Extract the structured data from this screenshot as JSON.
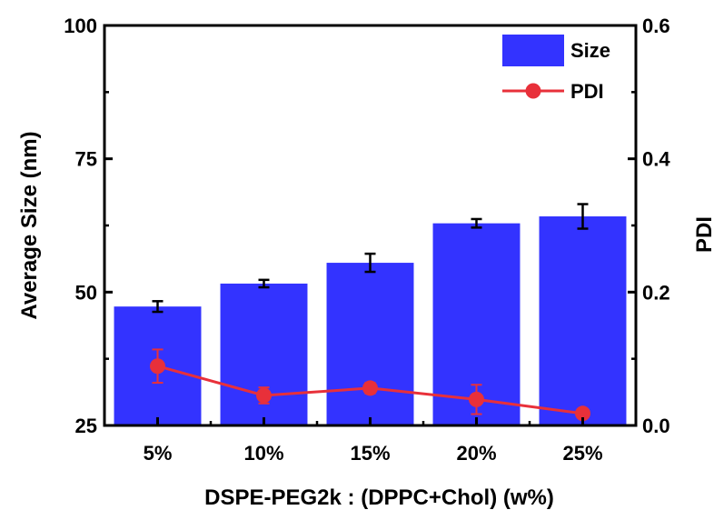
{
  "chart_data": {
    "type": "bar",
    "categories": [
      "5%",
      "10%",
      "15%",
      "20%",
      "25%"
    ],
    "xlabel": "DSPE-PEG2k : (DPPC+Chol) (w%)",
    "ylabel": "Average Size (nm)",
    "y2label": "PDI",
    "ylim": [
      25,
      100
    ],
    "y2lim": [
      0.0,
      0.6
    ],
    "yticks": [
      "25",
      "50",
      "75",
      "100"
    ],
    "y2ticks": [
      "0.0",
      "0.2",
      "0.4",
      "0.6"
    ],
    "series": [
      {
        "name": "Size",
        "type": "bar",
        "axis": "left",
        "values": [
          47.3,
          51.6,
          55.5,
          62.9,
          64.2
        ],
        "errors": [
          1.0,
          0.7,
          1.7,
          0.8,
          2.3
        ],
        "color": "#3333ff"
      },
      {
        "name": "PDI",
        "type": "line",
        "axis": "right",
        "values": [
          0.089,
          0.045,
          0.056,
          0.039,
          0.018
        ],
        "errors": [
          0.025,
          0.012,
          0.008,
          0.022,
          0.005
        ],
        "color": "#e8303a"
      }
    ],
    "legend": "top-right",
    "grid": false
  }
}
